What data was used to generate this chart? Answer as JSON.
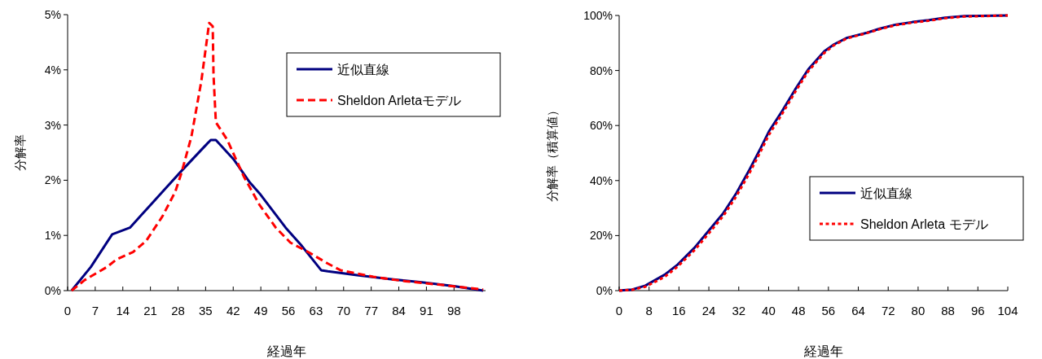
{
  "chart_data": [
    {
      "type": "line",
      "xlabel": "経過年",
      "ylabel": "分解率",
      "xlim": [
        0,
        106
      ],
      "xticks": [
        0,
        7,
        14,
        21,
        28,
        35,
        42,
        49,
        56,
        63,
        70,
        77,
        84,
        91,
        98
      ],
      "ylim": [
        0,
        5
      ],
      "yticks": [
        {
          "value": 0,
          "label": "0%"
        },
        {
          "value": 1,
          "label": "1%"
        },
        {
          "value": 2,
          "label": "2%"
        },
        {
          "value": 3,
          "label": "3%"
        },
        {
          "value": 4,
          "label": "4%"
        },
        {
          "value": 5,
          "label": "5%"
        }
      ],
      "grid": false,
      "legend": "top right",
      "series": [
        {
          "name": "近似直線",
          "color": "#000080",
          "line_style": "solid",
          "x": [
            1,
            5.9,
            11.3,
            15.8,
            19.1,
            25.2,
            28.9,
            33.9,
            36.3,
            37.6,
            42.1,
            46.2,
            48.7,
            55.3,
            59.4,
            64.3,
            66,
            73.4,
            81.6,
            89.8,
            98,
            105.4
          ],
          "values": [
            0,
            0.43,
            1.02,
            1.14,
            1.4,
            1.88,
            2.17,
            2.55,
            2.73,
            2.73,
            2.38,
            1.96,
            1.76,
            1.14,
            0.81,
            0.37,
            0.35,
            0.28,
            0.21,
            0.15,
            0.08,
            0
          ]
        },
        {
          "name": "Sheldon Arletaモデル",
          "color": "#ff0000",
          "line_style": "dashed",
          "x": [
            1,
            4.3,
            10,
            12.5,
            16.6,
            19.9,
            24,
            27.3,
            28.9,
            31.4,
            33.9,
            35.9,
            36.8,
            37,
            37.6,
            40.5,
            44.6,
            48.7,
            52.8,
            56.5,
            61,
            66,
            69.2,
            77.5,
            85.7,
            94,
            105.4
          ],
          "values": [
            0,
            0.19,
            0.43,
            0.57,
            0.7,
            0.9,
            1.34,
            1.79,
            2.14,
            2.79,
            3.79,
            4.85,
            4.79,
            3.91,
            3.05,
            2.73,
            2.08,
            1.55,
            1.14,
            0.87,
            0.7,
            0.49,
            0.37,
            0.25,
            0.17,
            0.11,
            0.02
          ]
        }
      ]
    },
    {
      "type": "line",
      "xlabel": "経過年",
      "ylabel": "分解率（積算値）",
      "xlim": [
        0,
        104
      ],
      "xticks": [
        0,
        8,
        16,
        24,
        32,
        40,
        48,
        56,
        64,
        72,
        80,
        88,
        96,
        104
      ],
      "ylim": [
        0,
        100
      ],
      "yticks": [
        {
          "value": 0,
          "label": "0%"
        },
        {
          "value": 20,
          "label": "20%"
        },
        {
          "value": 40,
          "label": "40%"
        },
        {
          "value": 60,
          "label": "60%"
        },
        {
          "value": 80,
          "label": "80%"
        },
        {
          "value": 100,
          "label": "100%"
        }
      ],
      "grid": false,
      "legend": "right",
      "series": [
        {
          "name": "近似直線",
          "color": "#000080",
          "line_style": "solid",
          "x": [
            0,
            3.5,
            7,
            12.2,
            15.7,
            20.1,
            23.5,
            27.9,
            31.4,
            34.9,
            37.9,
            40.1,
            43.6,
            47.1,
            50.6,
            54.9,
            57.5,
            61,
            66.3,
            69.7,
            74.1,
            78.5,
            82.8,
            87.2,
            92.4,
            104
          ],
          "values": [
            0,
            0.4,
            1.8,
            5.8,
            9.5,
            15.5,
            21,
            28.2,
            35.5,
            44,
            51.9,
            57.9,
            65.2,
            73.1,
            80.4,
            87,
            89.5,
            91.9,
            93.7,
            95.2,
            96.7,
            97.6,
            98.3,
            99.2,
            99.8,
            100
          ]
        },
        {
          "name": "Sheldon Arleta モデル",
          "color": "#ff0000",
          "line_style": "dotted",
          "x": [
            0,
            3.5,
            7,
            12.2,
            15.7,
            20.1,
            23.5,
            27.9,
            31.4,
            34.9,
            37.9,
            40.1,
            43.6,
            47.1,
            50.6,
            54.9,
            57.5,
            61,
            66.3,
            69.7,
            74.1,
            78.5,
            82.8,
            87.2,
            92.4,
            104
          ],
          "values": [
            0,
            0.3,
            1.4,
            5.0,
            8.8,
            14.6,
            20,
            27.2,
            34.4,
            42.8,
            50.7,
            56.7,
            64.2,
            72.2,
            79.7,
            86.4,
            89.2,
            91.7,
            93.6,
            95.0,
            96.5,
            97.4,
            98.1,
            99.0,
            99.6,
            100
          ]
        }
      ]
    }
  ]
}
